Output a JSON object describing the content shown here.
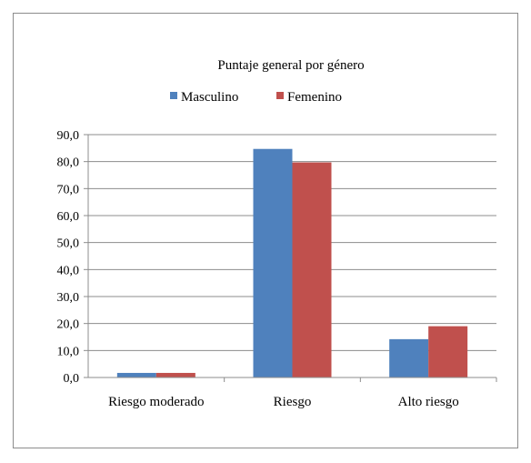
{
  "chart_data": {
    "type": "bar",
    "title": "Puntaje general por género",
    "categories": [
      "Riesgo moderado",
      "Riesgo",
      "Alto riesgo"
    ],
    "series": [
      {
        "name": "Masculino",
        "color": "#4f81bd",
        "values": [
          1.7,
          84.7,
          14.2
        ]
      },
      {
        "name": "Femenino",
        "color": "#c0504d",
        "values": [
          1.7,
          79.7,
          19.0
        ]
      }
    ],
    "ylim": [
      0,
      90
    ],
    "yticks": [
      "0,0",
      "10,0",
      "20,0",
      "30,0",
      "40,0",
      "50,0",
      "60,0",
      "70,0",
      "80,0",
      "90,0"
    ],
    "grid": true,
    "legend_position": "top",
    "xlabel": "",
    "ylabel": ""
  }
}
